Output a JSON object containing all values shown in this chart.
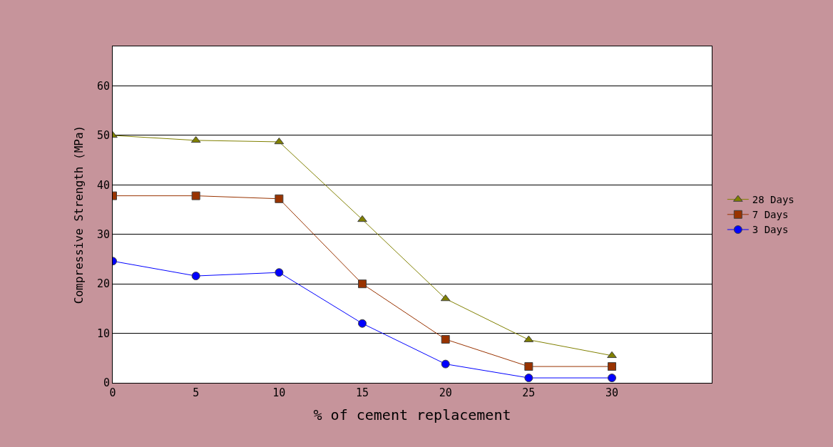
{
  "chart_data": {
    "type": "line",
    "xlabel": "% of cement replacement",
    "ylabel": "Compressive Strength (MPa)",
    "x": [
      0,
      5,
      10,
      15,
      20,
      25,
      30
    ],
    "series": [
      {
        "name": "28 Days",
        "color": "#808000",
        "marker": "triangle",
        "values": [
          50,
          49,
          48.7,
          33,
          17,
          8.7,
          5.5
        ]
      },
      {
        "name": "7 Days",
        "color": "#993300",
        "marker": "square",
        "values": [
          37.8,
          37.8,
          37.2,
          20,
          8.8,
          3.3,
          3.3
        ]
      },
      {
        "name": "3 Days",
        "color": "#0000ff",
        "marker": "circle",
        "values": [
          24.6,
          21.6,
          22.3,
          12,
          3.8,
          1,
          1
        ]
      }
    ],
    "xlim": [
      0,
      36
    ],
    "xticks": [
      0,
      5,
      10,
      15,
      20,
      25,
      30
    ],
    "ylim": [
      0,
      68
    ],
    "yticks": [
      0,
      10,
      20,
      30,
      40,
      50,
      60
    ],
    "grid": "y",
    "legend": "right",
    "line_style": "solid"
  }
}
